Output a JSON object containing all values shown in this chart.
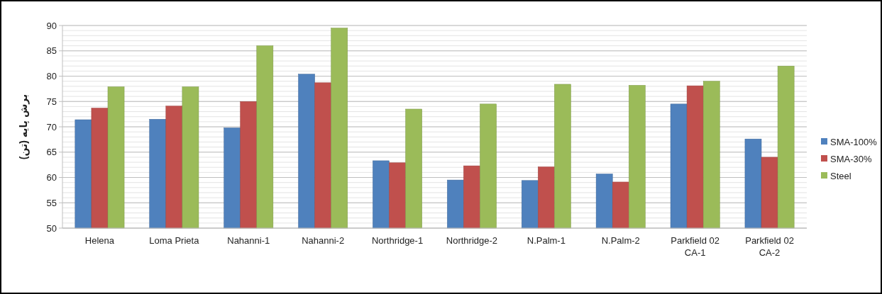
{
  "chart_data": {
    "type": "bar",
    "ylabel": "برش پایه (تن)",
    "categories": [
      "Helena",
      "Loma Prieta",
      "Nahanni-1",
      "Nahanni-2",
      "Northridge-1",
      "Northridge-2",
      "N.Palm-1",
      "N.Palm-2",
      "Parkfield 02 CA-1",
      "Parkfield 02 CA-2"
    ],
    "series": [
      {
        "name": "SMA-100%",
        "color": "#4f81bd",
        "values": [
          71.4,
          71.5,
          69.8,
          80.4,
          63.3,
          59.5,
          59.4,
          60.7,
          74.5,
          67.6
        ]
      },
      {
        "name": "SMA-30%",
        "color": "#c0504d",
        "values": [
          73.7,
          74.1,
          75.0,
          78.7,
          62.9,
          62.3,
          62.1,
          59.1,
          78.1,
          64.0
        ]
      },
      {
        "name": "Steel",
        "color": "#9bbb59",
        "values": [
          77.9,
          77.9,
          86.0,
          89.5,
          73.5,
          74.5,
          78.4,
          78.2,
          79.0,
          82.0
        ]
      }
    ],
    "ylim": [
      50,
      90
    ],
    "yticks": [
      50,
      55,
      60,
      65,
      70,
      75,
      80,
      85,
      90
    ],
    "grid": "y",
    "legend": "right"
  }
}
